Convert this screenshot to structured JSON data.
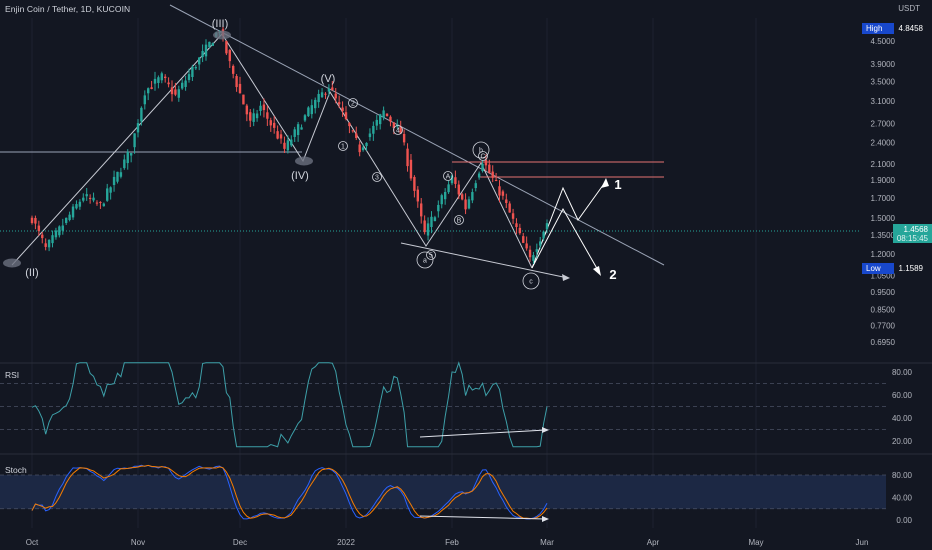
{
  "header": {
    "symbol_title": "Enjin Coin / Tether, 1D, KUCOIN",
    "currency": "USDT"
  },
  "price_scale": {
    "ticks": [
      "4.5000",
      "3.9000",
      "3.5000",
      "3.1000",
      "2.7000",
      "2.4000",
      "2.1000",
      "1.9000",
      "1.7000",
      "1.5000",
      "1.3500",
      "1.2000",
      "1.0500",
      "0.9500",
      "0.8500",
      "0.7700",
      "0.6950"
    ],
    "high": {
      "label": "High",
      "value": "4.8458"
    },
    "low": {
      "label": "Low",
      "value": "1.1589"
    },
    "last": {
      "value": "1.4568",
      "countdown": "08:15:45"
    }
  },
  "rsi": {
    "label": "RSI",
    "ticks": [
      "80.00",
      "60.00",
      "40.00",
      "20.00"
    ]
  },
  "stoch": {
    "label": "Stoch",
    "ticks": [
      "80.00",
      "40.00",
      "0.00"
    ]
  },
  "time_axis": [
    "Oct",
    "Nov",
    "Dec",
    "2022",
    "Feb",
    "Mar",
    "Apr",
    "May",
    "Jun"
  ],
  "wave_labels": {
    "II": "(II)",
    "III": "(III)",
    "IV": "(IV)",
    "V": "(V)",
    "a": "a",
    "b": "b",
    "c": "c",
    "sub": [
      "1",
      "2",
      "3",
      "4",
      "5"
    ],
    "abc_sub": [
      "A",
      "B",
      "C"
    ]
  },
  "scenario_labels": [
    "1",
    "2"
  ],
  "colors": {
    "background": "#131722",
    "up": "#26a69a",
    "down": "#ef5350",
    "rsi_line": "#3d9fa8",
    "stoch_k": "#2962ff",
    "stoch_d": "#f57c00",
    "stoch_band": "#1e2a48",
    "annotation": "#d1d4dc",
    "resistance": "#e57373",
    "last_price": "#26a69a",
    "range_badge": "#1848cc"
  },
  "chart_data": {
    "type": "candlestick",
    "title": "Enjin Coin / Tether, 1D, KUCOIN",
    "price_axis": {
      "scale": "log",
      "range": [
        0.66,
        5.4
      ],
      "unit": "USDT"
    },
    "x_range": [
      "2021-10-01",
      "2022-06-30"
    ],
    "price_pivots": [
      {
        "date": "2021-10-01",
        "price": 1.5
      },
      {
        "date": "2021-10-05",
        "price": 1.24,
        "label": "(II)"
      },
      {
        "date": "2021-10-16",
        "price": 1.72
      },
      {
        "date": "2021-10-21",
        "price": 1.62
      },
      {
        "date": "2021-10-30",
        "price": 2.3
      },
      {
        "date": "2021-11-03",
        "price": 3.3
      },
      {
        "date": "2021-11-08",
        "price": 3.6
      },
      {
        "date": "2021-11-12",
        "price": 3.2
      },
      {
        "date": "2021-11-18",
        "price": 3.9
      },
      {
        "date": "2021-11-25",
        "price": 4.85,
        "label": "(III)"
      },
      {
        "date": "2021-11-28",
        "price": 3.9
      },
      {
        "date": "2021-12-04",
        "price": 2.7
      },
      {
        "date": "2021-12-07",
        "price": 3.0
      },
      {
        "date": "2021-12-12",
        "price": 2.5
      },
      {
        "date": "2021-12-14",
        "price": 2.3,
        "label": "(IV)"
      },
      {
        "date": "2021-12-22",
        "price": 3.0
      },
      {
        "date": "2021-12-27",
        "price": 3.4,
        "label": "(V)"
      },
      {
        "date": "2022-01-05",
        "price": 2.3
      },
      {
        "date": "2022-01-12",
        "price": 2.9
      },
      {
        "date": "2022-01-17",
        "price": 2.55
      },
      {
        "date": "2022-01-24",
        "price": 1.36,
        "label": "a"
      },
      {
        "date": "2022-02-01",
        "price": 1.93
      },
      {
        "date": "2022-02-05",
        "price": 1.6
      },
      {
        "date": "2022-02-10",
        "price": 2.15,
        "label": "b"
      },
      {
        "date": "2022-02-16",
        "price": 1.7
      },
      {
        "date": "2022-02-24",
        "price": 1.16,
        "label": "c"
      },
      {
        "date": "2022-03-01",
        "price": 1.46
      }
    ],
    "rsi_range": [
      0,
      100
    ],
    "stoch_range": [
      0,
      100
    ]
  }
}
